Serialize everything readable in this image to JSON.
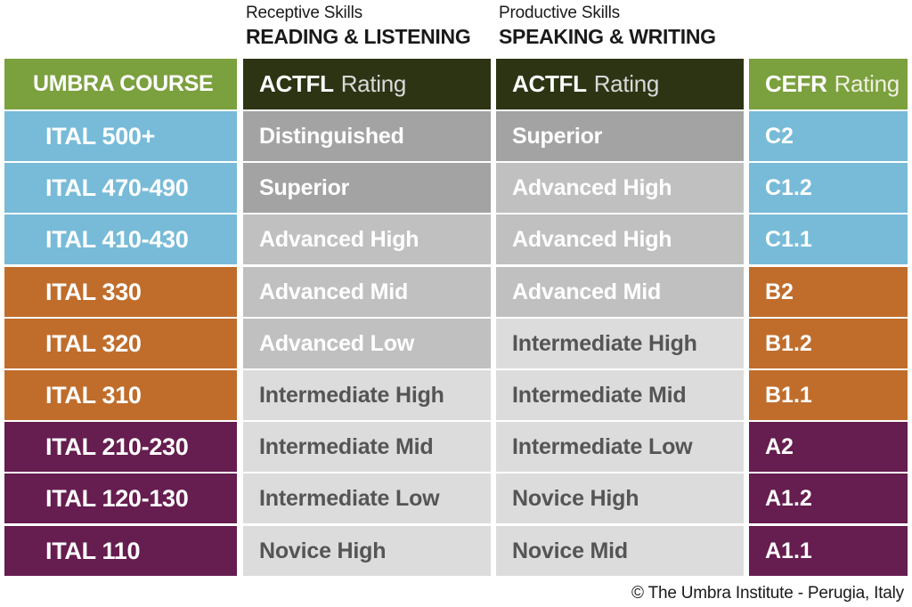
{
  "receptive": {
    "sub": "Receptive Skills",
    "main": "READING & LISTENING"
  },
  "productive": {
    "sub": "Productive Skills",
    "main": "SPEAKING & WRITING"
  },
  "headers": {
    "course": "UMBRA COURSE",
    "actfl_bold": "ACTFL",
    "actfl_light": "Rating",
    "cefr_bold": "CEFR",
    "cefr_light": "Rating"
  },
  "colors": {
    "blue": "#77bbd8",
    "orange": "#c06d2c",
    "purple": "#661d4f",
    "header_green": "#7ba03e",
    "header_dark": "#2d3414",
    "grey_dark": "#a3a3a3",
    "grey_mid": "#c0c0c0",
    "grey_light": "#dcdcdc",
    "text_white": "#ffffff",
    "text_grey": "#555555"
  },
  "rows": [
    {
      "course": "ITAL 500+",
      "reading": "Distinguished",
      "speaking": "Superior",
      "cefr": "C2",
      "band": "blue",
      "reading_shade": "dark",
      "speaking_shade": "dark"
    },
    {
      "course": "ITAL 470-490",
      "reading": "Superior",
      "speaking": "Advanced High",
      "cefr": "C1.2",
      "band": "blue",
      "reading_shade": "dark",
      "speaking_shade": "mid"
    },
    {
      "course": "ITAL 410-430",
      "reading": "Advanced High",
      "speaking": "Advanced High",
      "cefr": "C1.1",
      "band": "blue",
      "reading_shade": "mid",
      "speaking_shade": "mid"
    },
    {
      "course": "ITAL 330",
      "reading": "Advanced Mid",
      "speaking": "Advanced Mid",
      "cefr": "B2",
      "band": "orange",
      "reading_shade": "mid",
      "speaking_shade": "mid"
    },
    {
      "course": "ITAL 320",
      "reading": "Advanced Low",
      "speaking": "Intermediate High",
      "cefr": "B1.2",
      "band": "orange",
      "reading_shade": "mid",
      "speaking_shade": "light"
    },
    {
      "course": "ITAL 310",
      "reading": "Intermediate High",
      "speaking": "Intermediate Mid",
      "cefr": "B1.1",
      "band": "orange",
      "reading_shade": "light",
      "speaking_shade": "light"
    },
    {
      "course": "ITAL 210-230",
      "reading": "Intermediate Mid",
      "speaking": "Intermediate Low",
      "cefr": "A2",
      "band": "purple",
      "reading_shade": "light",
      "speaking_shade": "light"
    },
    {
      "course": "ITAL 120-130",
      "reading": "Intermediate Low",
      "speaking": "Novice High",
      "cefr": "A1.2",
      "band": "purple",
      "reading_shade": "light",
      "speaking_shade": "light"
    },
    {
      "course": "ITAL 110",
      "reading": "Novice High",
      "speaking": "Novice Mid",
      "cefr": "A1.1",
      "band": "purple",
      "reading_shade": "light",
      "speaking_shade": "light"
    }
  ],
  "copyright": "© The Umbra Institute - Perugia, Italy"
}
